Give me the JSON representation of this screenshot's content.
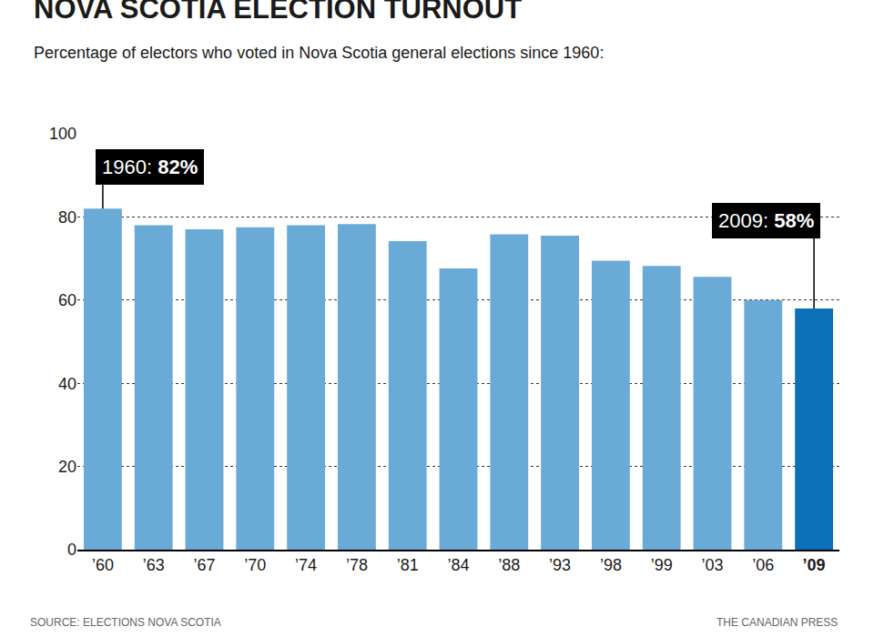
{
  "chart_data": {
    "type": "bar",
    "title": "NOVA SCOTIA ELECTION TURNOUT",
    "subtitle": "Percentage of electors who voted in Nova Scotia general elections since 1960:",
    "source": "SOURCE: ELECTIONS NOVA SCOTIA",
    "credit": "THE CANADIAN PRESS",
    "categories": [
      "’60",
      "’63",
      "’67",
      "’70",
      "’74",
      "’78",
      "’81",
      "’84",
      "’88",
      "’93",
      "’98",
      "’99",
      "’03",
      "’06",
      "’09"
    ],
    "values": [
      82,
      78,
      77,
      77.5,
      78,
      78.3,
      74.2,
      67.6,
      75.8,
      75.5,
      69.5,
      68.2,
      65.6,
      60,
      58
    ],
    "colors": [
      "#69aad7",
      "#69aad7",
      "#69aad7",
      "#69aad7",
      "#69aad7",
      "#69aad7",
      "#69aad7",
      "#69aad7",
      "#69aad7",
      "#69aad7",
      "#69aad7",
      "#69aad7",
      "#69aad7",
      "#69aad7",
      "#0b70b8"
    ],
    "annotations": [
      {
        "text": "1960: 82%",
        "x": "’60",
        "y": 82
      },
      {
        "text": "2009: 58%",
        "x": "’09",
        "y": 58
      }
    ],
    "ylim": [
      0,
      100
    ],
    "yticks": [
      0,
      20,
      40,
      60,
      80,
      100
    ],
    "grid": true
  }
}
